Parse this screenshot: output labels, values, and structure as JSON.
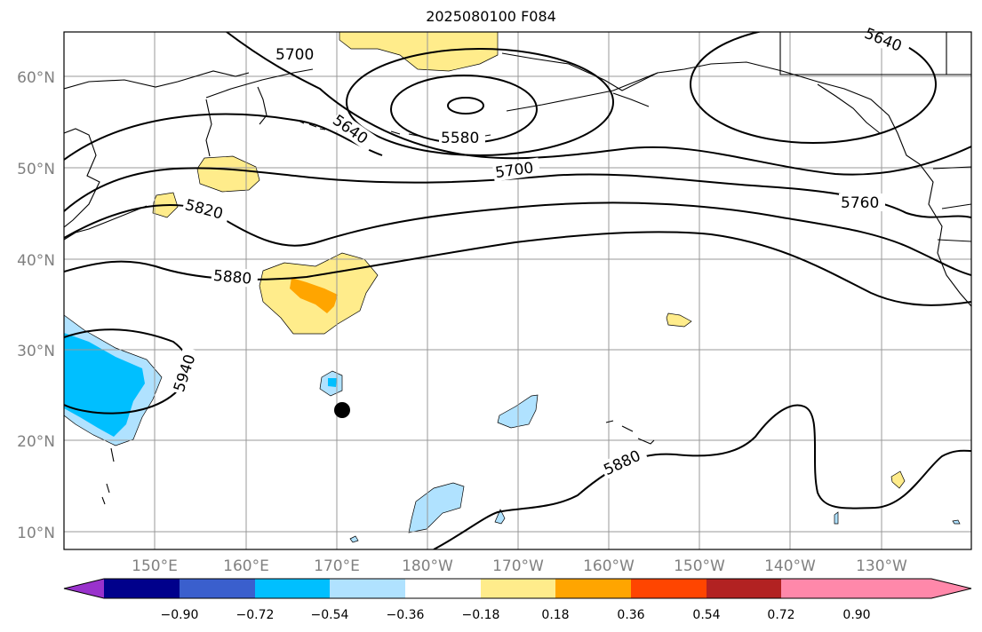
{
  "title": "2025080100 F084",
  "map": {
    "lat_labels": [
      "60°N",
      "50°N",
      "40°N",
      "30°N",
      "20°N",
      "10°N"
    ],
    "lon_labels": [
      "150°E",
      "160°E",
      "170°E",
      "180°W",
      "170°W",
      "160°W",
      "150°W",
      "140°W",
      "130°W"
    ],
    "contour_labels": [
      "5700",
      "5640",
      "5640",
      "5580",
      "5700",
      "5760",
      "5820",
      "5880",
      "5940",
      "5880"
    ],
    "grid": true,
    "marker": "black-dot"
  },
  "colorbar": {
    "colors": [
      "#9932cc",
      "#00008b",
      "#3a5fcd",
      "#00bfff",
      "#b0e2ff",
      "#ffffff",
      "#ffec8b",
      "#ffa500",
      "#ff4500",
      "#b22222",
      "#ff88aa"
    ],
    "tick_labels": [
      "−0.90",
      "−0.72",
      "−0.54",
      "−0.36",
      "−0.18",
      "0.18",
      "0.36",
      "0.54",
      "0.72",
      "0.90"
    ]
  }
}
